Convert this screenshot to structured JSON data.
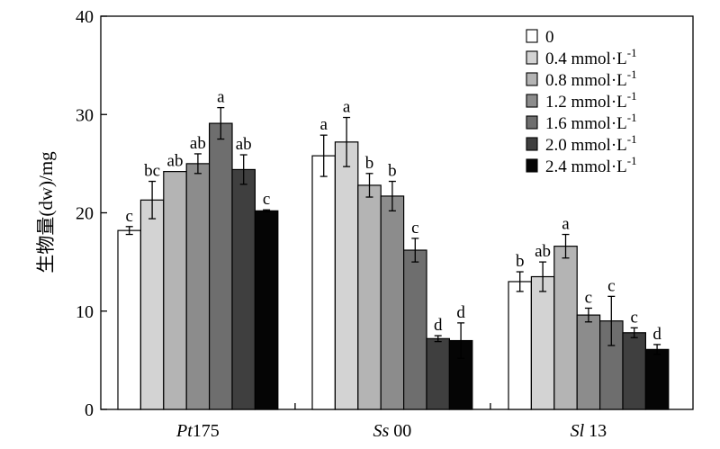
{
  "chart_data": {
    "type": "bar",
    "title": "",
    "xlabel": "",
    "ylabel": "生物量(dw)/mg",
    "ylim": [
      0,
      40
    ],
    "yticks": [
      0,
      10,
      20,
      30,
      40
    ],
    "grid": false,
    "legend_position": "top-right",
    "categories": [
      {
        "prefix": "Pt",
        "suffix": "175"
      },
      {
        "prefix": "Ss",
        "suffix": " 00"
      },
      {
        "prefix": "Sl",
        "suffix": " 13"
      }
    ],
    "series": [
      {
        "name": "0",
        "unit_base": "",
        "unit_sup": "",
        "color": "#ffffff",
        "values": [
          18.2,
          25.8,
          13.0
        ],
        "errors": [
          0.4,
          2.1,
          1.0
        ],
        "labels": [
          "c",
          "a",
          "b"
        ]
      },
      {
        "name": "0.4",
        "unit_base": " mmol·L",
        "unit_sup": "-1",
        "color": "#d3d3d3",
        "values": [
          21.3,
          27.2,
          13.5
        ],
        "errors": [
          1.9,
          2.5,
          1.5
        ],
        "labels": [
          "bc",
          "a",
          "ab"
        ]
      },
      {
        "name": "0.8",
        "unit_base": " mmol·L",
        "unit_sup": "-1",
        "color": "#b4b4b4",
        "values": [
          24.2,
          22.8,
          16.6
        ],
        "errors": [
          0,
          1.2,
          1.2
        ],
        "labels": [
          "ab",
          "b",
          "a"
        ]
      },
      {
        "name": "1.2",
        "unit_base": " mmol·L",
        "unit_sup": "-1",
        "color": "#8c8c8c",
        "values": [
          25.0,
          21.7,
          9.6
        ],
        "errors": [
          1.0,
          1.5,
          0.7
        ],
        "labels": [
          "ab",
          "b",
          "c"
        ]
      },
      {
        "name": "1.6",
        "unit_base": " mmol·L",
        "unit_sup": "-1",
        "color": "#6e6e6e",
        "values": [
          29.1,
          16.2,
          9.0
        ],
        "errors": [
          1.6,
          1.2,
          2.5
        ],
        "labels": [
          "a",
          "c",
          "c"
        ]
      },
      {
        "name": "2.0",
        "unit_base": " mmol·L",
        "unit_sup": "-1",
        "color": "#3f3f3f",
        "values": [
          24.4,
          7.2,
          7.8
        ],
        "errors": [
          1.5,
          0.3,
          0.5
        ],
        "labels": [
          "ab",
          "d",
          "c"
        ]
      },
      {
        "name": "2.4",
        "unit_base": " mmol·L",
        "unit_sup": "-1",
        "color": "#050505",
        "values": [
          20.2,
          7.0,
          6.1
        ],
        "errors": [
          0.1,
          1.8,
          0.5
        ],
        "labels": [
          "c",
          "d",
          "d"
        ]
      }
    ]
  }
}
